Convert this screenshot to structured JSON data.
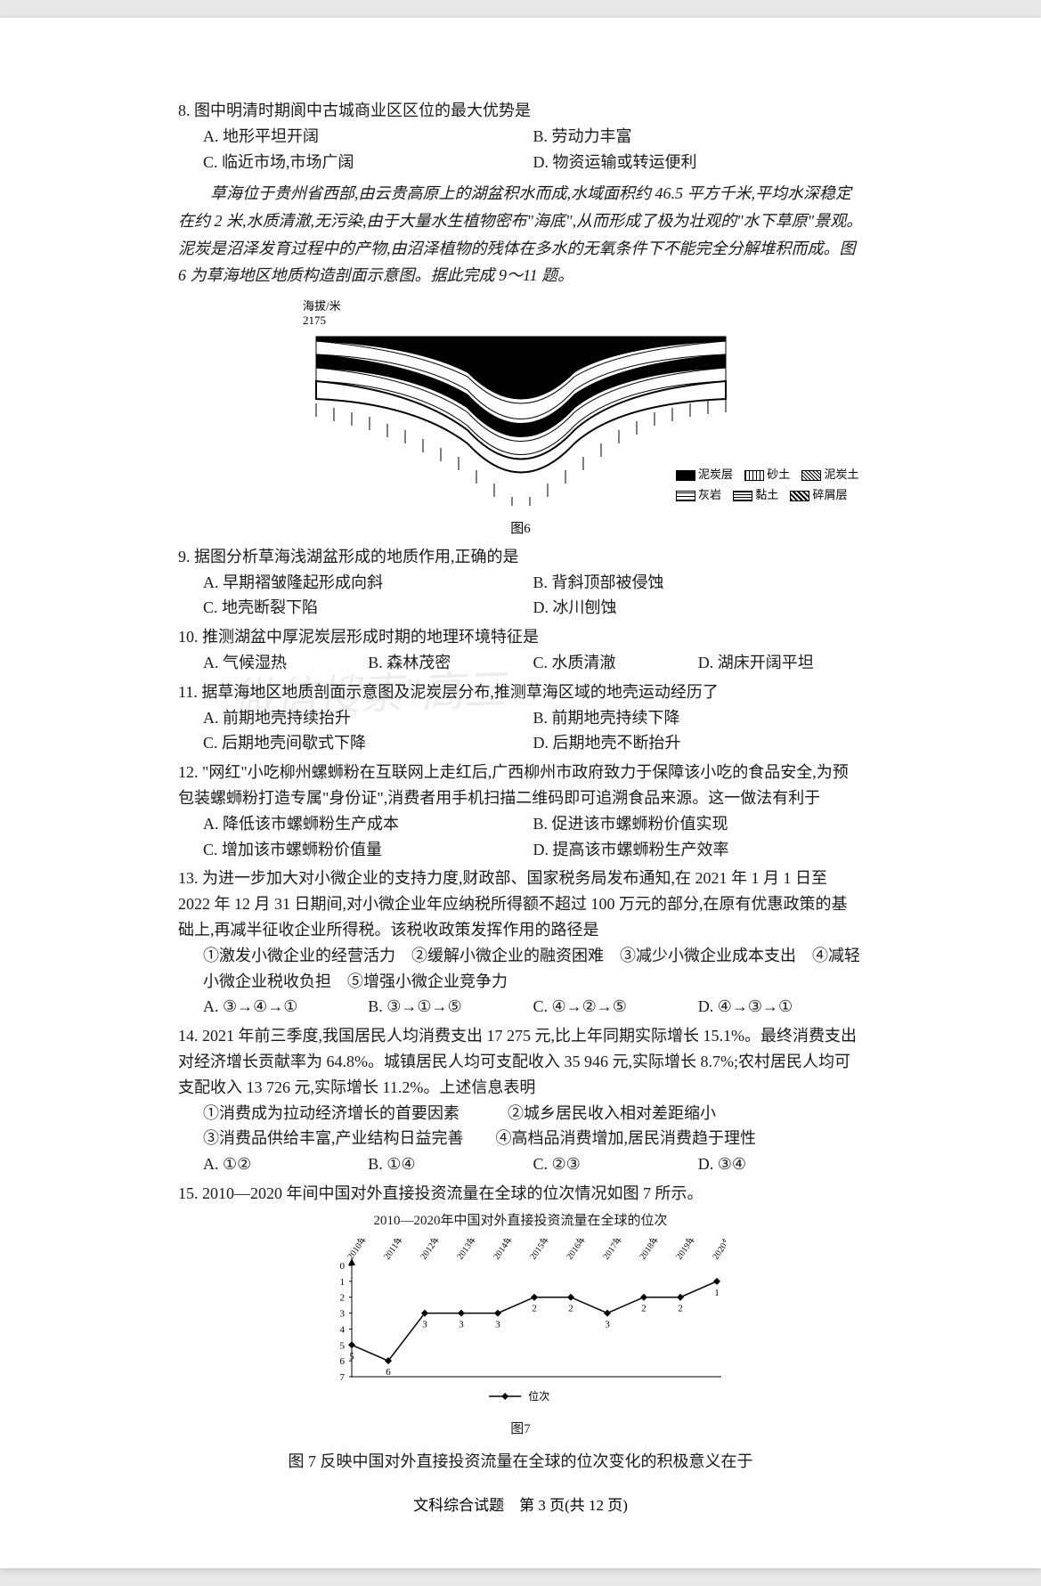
{
  "q8": {
    "stem": "8. 图中明清时期阆中古城商业区区位的最大优势是",
    "A": "A. 地形平坦开阔",
    "B": "B. 劳动力丰富",
    "C": "C. 临近市场,市场广阔",
    "D": "D. 物资运输或转运便利"
  },
  "passage1": "草海位于贵州省西部,由云贵高原上的湖盆积水而成,水域面积约 46.5 平方千米,平均水深稳定在约 2 米,水质清澈,无污染,由于大量水生植物密布\"海底\",从而形成了极为壮观的\"水下草原\"景观。泥炭是沼泽发育过程中的产物,由沼泽植物的残体在多水的无氧条件下不能完全分解堆积而成。图 6 为草海地区地质构造剖面示意图。据此完成 9～11 题。",
  "fig6": {
    "axis_label": "海拔/米",
    "axis_value": "2175",
    "label": "图6",
    "legend": {
      "peat": "泥炭层",
      "sand": "砂土",
      "peat_soil": "泥炭土",
      "limestone": "灰岩",
      "clay": "黏土",
      "debris": "碎屑层"
    },
    "colors": {
      "peat": "#000000",
      "sand_pattern": "#ffffff",
      "limestone_pattern": "#ffffff",
      "outline": "#000000"
    }
  },
  "q9": {
    "stem": "9. 据图分析草海浅湖盆形成的地质作用,正确的是",
    "A": "A. 早期褶皱隆起形成向斜",
    "B": "B. 背斜顶部被侵蚀",
    "C": "C. 地壳断裂下陷",
    "D": "D. 冰川刨蚀"
  },
  "q10": {
    "stem": "10. 推测湖盆中厚泥炭层形成时期的地理环境特征是",
    "A": "A. 气候湿热",
    "B": "B. 森林茂密",
    "C": "C. 水质清澈",
    "D": "D. 湖床开阔平坦"
  },
  "q11": {
    "stem": "11. 据草海地区地质剖面示意图及泥炭层分布,推测草海区域的地壳运动经历了",
    "A": "A. 前期地壳持续抬升",
    "B": "B. 前期地壳持续下降",
    "C": "C. 后期地壳间歇式下降",
    "D": "D. 后期地壳不断抬升"
  },
  "q12": {
    "stem": "12. \"网红\"小吃柳州螺蛳粉在互联网上走红后,广西柳州市政府致力于保障该小吃的食品安全,为预包装螺蛳粉打造专属\"身份证\",消费者用手机扫描二维码即可追溯食品来源。这一做法有利于",
    "A": "A. 降低该市螺蛳粉生产成本",
    "B": "B. 促进该市螺蛳粉价值实现",
    "C": "C. 增加该市螺蛳粉价值量",
    "D": "D. 提高该市螺蛳粉生产效率"
  },
  "q13": {
    "stem": "13. 为进一步加大对小微企业的支持力度,财政部、国家税务局发布通知,在 2021 年 1 月 1 日至 2022 年 12 月 31 日期间,对小微企业年应纳税所得额不超过 100 万元的部分,在原有优惠政策的基础上,再减半征收企业所得税。该税收政策发挥作用的路径是",
    "items": "①激发小微企业的经营活力　②缓解小微企业的融资困难　③减少小微企业成本支出　④减轻小微企业税收负担　⑤增强小微企业竞争力",
    "A": "A. ③→④→①",
    "B": "B. ③→①→⑤",
    "C": "C. ④→②→⑤",
    "D": "D. ④→③→①"
  },
  "q14": {
    "stem": "14. 2021 年前三季度,我国居民人均消费支出 17 275 元,比上年同期实际增长 15.1%。最终消费支出对经济增长贡献率为 64.8%。城镇居民人均可支配收入 35 946 元,实际增长 8.7%;农村居民人均可支配收入 13 726 元,实际增长 11.2%。上述信息表明",
    "items": "①消费成为拉动经济增长的首要因素　　　②城乡居民收入相对差距缩小\n③消费品供给丰富,产业结构日益完善　　④高档品消费增加,居民消费趋于理性",
    "A": "A. ①②",
    "B": "B. ①④",
    "C": "C. ②③",
    "D": "D. ③④"
  },
  "q15": {
    "stem": "15. 2010—2020 年间中国对外直接投资流量在全球的位次情况如图 7 所示。",
    "chart_title": "2010—2020年中国对外直接投资流量在全球的位次",
    "years": [
      "2010年",
      "2011年",
      "2012年",
      "2013年",
      "2014年",
      "2015年",
      "2016年",
      "2017年",
      "2018年",
      "2019年",
      "2020年"
    ],
    "ranks": [
      5,
      6,
      3,
      3,
      3,
      2,
      2,
      3,
      2,
      2,
      1
    ],
    "ylabels": [
      "0",
      "1",
      "2",
      "3",
      "4",
      "5",
      "6",
      "7"
    ],
    "series_label": "位次",
    "fig_label": "图7",
    "caption": "图 7 反映中国对外直接投资流量在全球的位次变化的积极意义在于",
    "chart_colors": {
      "line": "#000000",
      "marker_fill": "#000000",
      "axis": "#000000",
      "bg": "#ffffff"
    }
  },
  "footer": "文科综合试题　第 3 页(共 12 页)",
  "watermark": "微信搜索\"高三"
}
